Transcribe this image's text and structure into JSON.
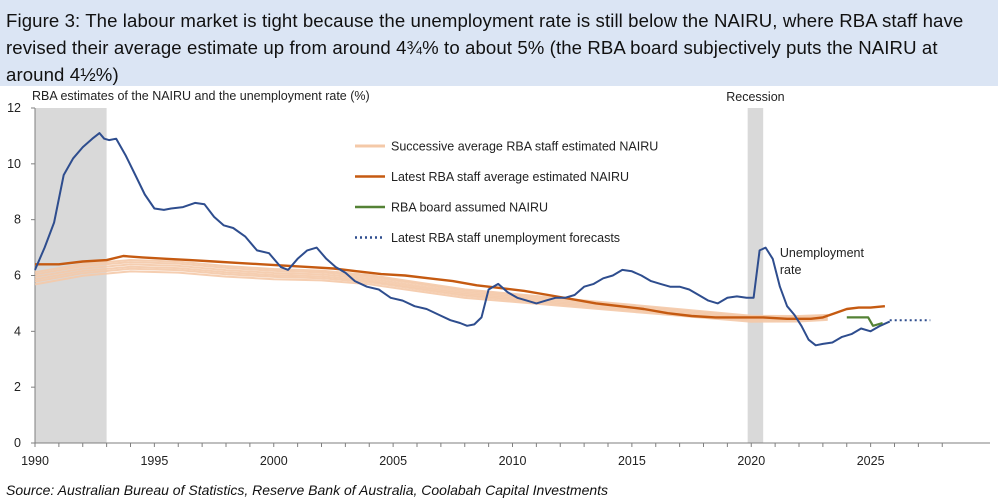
{
  "header": {
    "title": "Figure 3: The labour market is tight because the unemployment rate is still below the NAIRU, where RBA staff have revised their average estimate up from around 4¾% to about 5% (the RBA board subjectively puts the NAIRU at around 4½%)"
  },
  "footer": {
    "source": "Source:  Australian Bureau of Statistics, Reserve Bank of Australia, Coolabah Capital Investments"
  },
  "chart_data": {
    "type": "line",
    "title": "RBA estimates of the NAIRU and the unemployment rate (%)",
    "xlabel": "",
    "ylabel": "",
    "xlim": [
      1990,
      2030
    ],
    "ylim": [
      0,
      12
    ],
    "yticks": [
      0,
      2,
      4,
      6,
      8,
      10,
      12
    ],
    "xticks": [
      1990,
      1995,
      2000,
      2005,
      2010,
      2015,
      2020,
      2025
    ],
    "grid": false,
    "legend_position": "top-center",
    "colors": {
      "unemployment": "#2e4d8e",
      "latest_nairu": "#c55a11",
      "successive_nairu": "#f4c9a8",
      "board_nairu": "#548235",
      "forecast": "#2e4d8e",
      "recession": "#d9d9d9"
    },
    "recessions": [
      {
        "start": 1990.0,
        "end": 1993.0
      },
      {
        "start": 2019.85,
        "end": 2020.5,
        "label": "Recession"
      }
    ],
    "annotations": [
      {
        "text": "Unemployment",
        "x": 2021.2,
        "y": 6.8
      },
      {
        "text": "rate",
        "x": 2021.2,
        "y": 6.2
      }
    ],
    "series": [
      {
        "name": "Unemployment rate",
        "legend": false,
        "x": [
          1990.0,
          1990.4,
          1990.8,
          1991.2,
          1991.6,
          1992.0,
          1992.4,
          1992.7,
          1992.9,
          1993.1,
          1993.4,
          1993.8,
          1994.2,
          1994.6,
          1995.0,
          1995.4,
          1995.7,
          1996.2,
          1996.7,
          1997.1,
          1997.5,
          1997.9,
          1998.3,
          1998.8,
          1999.3,
          1999.8,
          2000.3,
          2000.6,
          2001.0,
          2001.4,
          2001.8,
          2002.2,
          2002.6,
          2003.0,
          2003.4,
          2003.9,
          2004.4,
          2004.9,
          2005.4,
          2005.9,
          2006.4,
          2006.9,
          2007.4,
          2007.8,
          2008.1,
          2008.4,
          2008.7,
          2009.0,
          2009.4,
          2009.8,
          2010.2,
          2010.6,
          2011.0,
          2011.4,
          2011.8,
          2012.2,
          2012.6,
          2013.0,
          2013.4,
          2013.8,
          2014.2,
          2014.6,
          2015.0,
          2015.4,
          2015.8,
          2016.2,
          2016.6,
          2017.0,
          2017.4,
          2017.8,
          2018.2,
          2018.6,
          2019.0,
          2019.4,
          2019.8,
          2020.1,
          2020.35,
          2020.6,
          2020.9,
          2021.2,
          2021.5,
          2021.8,
          2022.1,
          2022.4,
          2022.7,
          2023.0,
          2023.4,
          2023.8,
          2024.2,
          2024.6,
          2025.0,
          2025.4,
          2025.8
        ],
        "values": [
          6.2,
          7.0,
          7.9,
          9.6,
          10.2,
          10.6,
          10.9,
          11.1,
          10.9,
          10.85,
          10.9,
          10.3,
          9.6,
          8.9,
          8.4,
          8.35,
          8.4,
          8.45,
          8.6,
          8.55,
          8.1,
          7.8,
          7.7,
          7.4,
          6.9,
          6.8,
          6.3,
          6.2,
          6.6,
          6.9,
          7.0,
          6.6,
          6.3,
          6.1,
          5.8,
          5.6,
          5.5,
          5.2,
          5.1,
          4.9,
          4.8,
          4.6,
          4.4,
          4.3,
          4.2,
          4.25,
          4.5,
          5.5,
          5.7,
          5.4,
          5.2,
          5.1,
          5.0,
          5.1,
          5.2,
          5.2,
          5.3,
          5.6,
          5.7,
          5.9,
          6.0,
          6.2,
          6.15,
          6.0,
          5.8,
          5.7,
          5.6,
          5.6,
          5.5,
          5.3,
          5.1,
          5.0,
          5.2,
          5.25,
          5.2,
          5.2,
          6.9,
          7.0,
          6.6,
          5.6,
          4.9,
          4.6,
          4.2,
          3.7,
          3.5,
          3.55,
          3.6,
          3.8,
          3.9,
          4.1,
          4.0,
          4.2,
          4.35
        ]
      },
      {
        "name": "Latest RBA staff average estimated NAIRU",
        "legend": true,
        "x": [
          1990.0,
          1991.0,
          1992.0,
          1993.0,
          1993.7,
          1994.5,
          1995.5,
          1996.5,
          1997.5,
          1998.5,
          1999.5,
          2000.5,
          2001.5,
          2002.5,
          2003.5,
          2004.5,
          2005.5,
          2006.5,
          2007.5,
          2008.5,
          2009.5,
          2010.5,
          2011.5,
          2012.5,
          2013.5,
          2014.5,
          2015.5,
          2016.5,
          2017.5,
          2018.5,
          2019.5,
          2020.5,
          2021.5,
          2022.5,
          2023.0,
          2023.5,
          2024.0,
          2024.5,
          2025.0,
          2025.6
        ],
        "values": [
          6.4,
          6.4,
          6.5,
          6.55,
          6.7,
          6.65,
          6.6,
          6.55,
          6.5,
          6.45,
          6.4,
          6.35,
          6.3,
          6.25,
          6.15,
          6.05,
          6.0,
          5.9,
          5.8,
          5.65,
          5.55,
          5.45,
          5.3,
          5.15,
          5.0,
          4.9,
          4.8,
          4.65,
          4.55,
          4.5,
          4.5,
          4.5,
          4.45,
          4.45,
          4.5,
          4.65,
          4.8,
          4.85,
          4.85,
          4.9
        ]
      },
      {
        "name": "Successive average RBA staff estimated NAIRU",
        "legend": true,
        "x": [
          1990.0,
          1992.0,
          1994.0,
          1996.0,
          1998.0,
          2000.0,
          2002.0,
          2004.0,
          2006.0,
          2008.0,
          2010.0,
          2012.0,
          2014.0,
          2016.0,
          2018.0,
          2020.0,
          2022.0,
          2023.2
        ],
        "values": [
          5.9,
          6.2,
          6.35,
          6.3,
          6.15,
          6.05,
          6.0,
          5.85,
          5.6,
          5.35,
          5.2,
          5.05,
          4.9,
          4.75,
          4.6,
          4.45,
          4.45,
          4.5
        ]
      },
      {
        "name": "RBA board assumed NAIRU",
        "legend": true,
        "x": [
          2024.0,
          2024.5,
          2024.9,
          2025.1,
          2025.5
        ],
        "values": [
          4.5,
          4.5,
          4.5,
          4.2,
          4.3
        ]
      },
      {
        "name": "Latest RBA staff unemployment forecasts",
        "legend": true,
        "x": [
          2025.8,
          2026.5,
          2027.5
        ],
        "values": [
          4.4,
          4.4,
          4.4
        ]
      }
    ]
  }
}
